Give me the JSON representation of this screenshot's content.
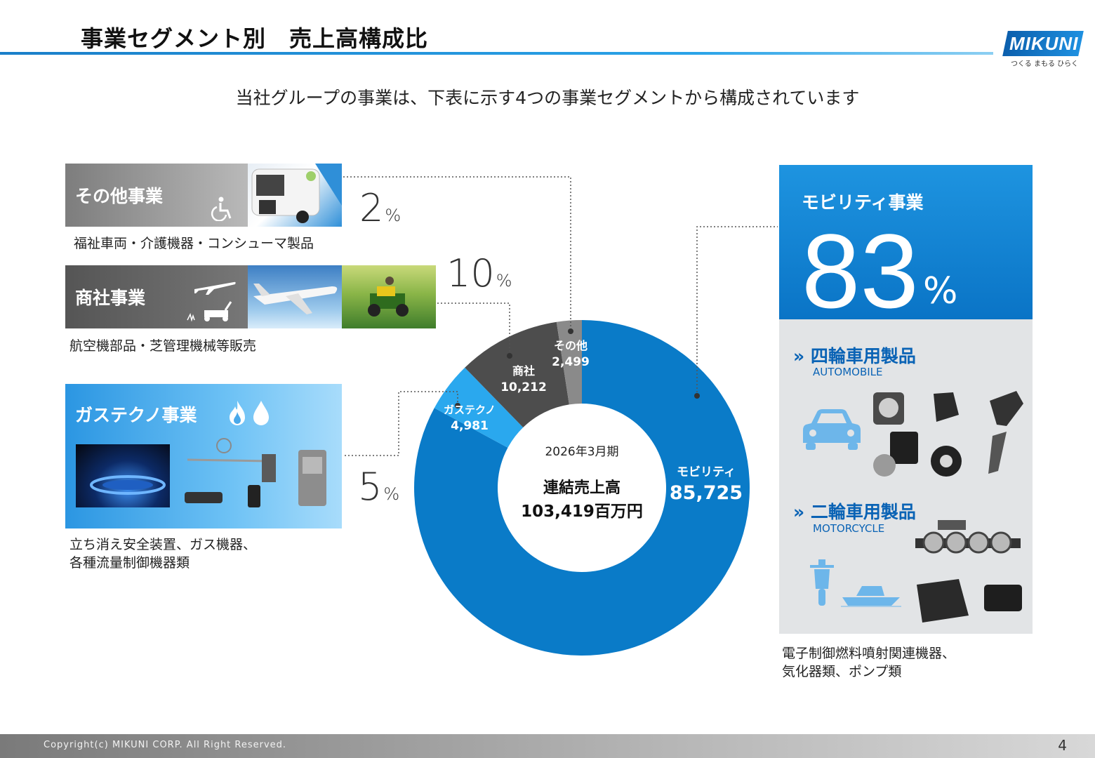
{
  "header": {
    "title": "事業セグメント別　売上高構成比",
    "logo_text": "MIKUNI",
    "logo_tagline": "つくる まもる ひらく"
  },
  "subtitle": "当社グループの事業は、下表に示す4つの事業セグメントから構成されています",
  "segments": {
    "other": {
      "name": "その他事業",
      "pct": "2",
      "pct_unit": "%",
      "desc": "福祉車両・介護機器・コンシューマ製品"
    },
    "trading": {
      "name": "商社事業",
      "pct": "10",
      "pct_unit": "%",
      "desc": "航空機部品・芝管理機械等販売"
    },
    "gas": {
      "name": "ガステクノ事業",
      "pct": "5",
      "pct_unit": "%",
      "desc_line1": "立ち消え安全装置、ガス機器、",
      "desc_line2": "各種流量制御機器類"
    },
    "mobility": {
      "name": "モビリティ事業",
      "pct": "83",
      "pct_unit": "%",
      "sub1": "» 四輪車用製品",
      "sub1_en": "AUTOMOBILE",
      "sub2": "» 二輪車用製品",
      "sub2_en": "MOTORCYCLE",
      "desc_line1": "電子制御燃料噴射関連機器、",
      "desc_line2": "気化器類、ポンプ類"
    }
  },
  "chart_data": {
    "type": "pie",
    "title": "",
    "center_period": "2026年3月期",
    "center_label": "連結売上高",
    "center_value": "103,419百万円",
    "total": 103419,
    "slices": [
      {
        "label": "モビリティ",
        "value": 85725,
        "value_text": "85,725",
        "color": "#0a7bc8"
      },
      {
        "label": "ガステクノ",
        "value": 4981,
        "value_text": "4,981",
        "color": "#2aa8ee"
      },
      {
        "label": "商社",
        "value": 10212,
        "value_text": "10,212",
        "color": "#4d4d4d"
      },
      {
        "label": "その他",
        "value": 2499,
        "value_text": "2,499",
        "color": "#8a8a8a"
      }
    ]
  },
  "footer": {
    "copyright": "Copyright(c) MIKUNI CORP. All Right Reserved.",
    "page": "4"
  },
  "icons": [
    "wheelchair-icon",
    "airplane-icon",
    "lawnmower-icon",
    "flame-icon",
    "water-drop-icon",
    "car-icon",
    "motorcycle-icon",
    "boat-icon"
  ]
}
